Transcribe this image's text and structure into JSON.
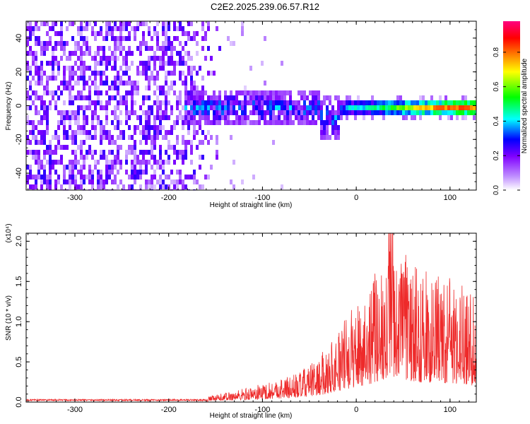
{
  "title": "C2E2.2025.239.06.57.R12",
  "chart_data": [
    {
      "type": "heatmap",
      "xlabel": "Height of straight line (km)",
      "ylabel": "Frequency (Hz)",
      "xlim": [
        -352,
        128
      ],
      "ylim": [
        -50,
        50
      ],
      "xticks": [
        -300,
        -200,
        -100,
        0,
        100
      ],
      "yticks": [
        -40,
        -20,
        0,
        20,
        40
      ],
      "grid": false,
      "colorbar": {
        "label": "Normalized spectral amplitude",
        "range": [
          0.0,
          0.98
        ],
        "ticks": [
          "0.0",
          "0.2",
          "0.4",
          "0.6",
          "0.8"
        ],
        "colormap": [
          "#ffffff",
          "#8000ff",
          "#0000ff",
          "#00ffff",
          "#00ff00",
          "#ffff00",
          "#ff8000",
          "#ff0000",
          "#ff0080"
        ]
      },
      "regions": [
        {
          "x": [
            -352,
            -140
          ],
          "freq": [
            -50,
            50
          ],
          "amplitude": [
            0.05,
            0.25
          ],
          "description": "broadband noise"
        },
        {
          "x": [
            -180,
            -40
          ],
          "freq": [
            -12,
            12
          ],
          "amplitude": [
            0.1,
            0.45
          ]
        },
        {
          "x": [
            -40,
            -20
          ],
          "freq": [
            -20,
            5
          ],
          "amplitude": [
            0.1,
            0.4
          ]
        },
        {
          "x": [
            -20,
            128
          ],
          "freq": [
            -5,
            5
          ],
          "amplitude": [
            0.3,
            0.95
          ]
        }
      ],
      "signal_center_freq": 0
    },
    {
      "type": "line",
      "xlabel": "Height of straight line (km)",
      "ylabel": "SNR (10 * v/v)",
      "yscale_label": "(x10⁴)",
      "xlim": [
        -352,
        128
      ],
      "ylim": [
        0,
        2.1
      ],
      "xticks": [
        -300,
        -200,
        -100,
        0,
        100
      ],
      "yticks": [
        "0.0",
        "0.5",
        "1.0",
        "1.5",
        "2.0"
      ],
      "series": [
        {
          "color": "#ee2a2a",
          "envelope": {
            "x": [
              -352,
              -200,
              -160,
              -140,
              -110,
              -80,
              -60,
              -40,
              -20,
              0,
              20,
              38,
              60,
              80,
              100,
              120,
              128
            ],
            "y_max": [
              0.03,
              0.03,
              0.06,
              0.12,
              0.2,
              0.3,
              0.38,
              0.55,
              0.9,
              1.25,
              1.6,
              2.1,
              1.7,
              1.6,
              1.55,
              1.45,
              1.3
            ]
          }
        }
      ]
    }
  ]
}
